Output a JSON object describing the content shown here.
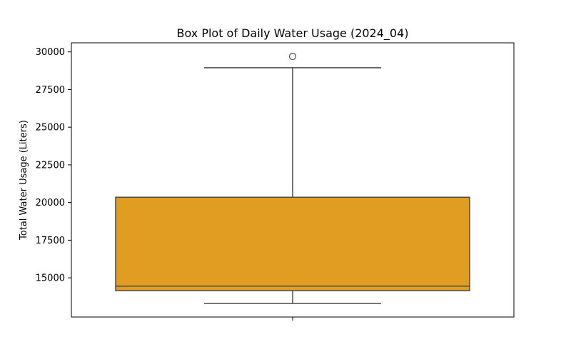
{
  "chart_data": {
    "type": "box",
    "title": "Box Plot of Daily Water Usage (2024_04)",
    "xlabel": "",
    "ylabel": "Total Water Usage (Liters)",
    "ylim": [
      12400,
      30600
    ],
    "yticks": [
      15000,
      17500,
      20000,
      22500,
      25000,
      27500,
      30000
    ],
    "ytick_labels": [
      "15000",
      "17500",
      "20000",
      "22500",
      "25000",
      "27500",
      "30000"
    ],
    "grid": false,
    "box": {
      "min": 13300,
      "q1": 14150,
      "median": 14450,
      "q3": 20350,
      "max": 28950,
      "outliers": [
        29700
      ]
    },
    "colors": {
      "box_fill": "#e09d21",
      "lines": "#4a4a4a"
    }
  }
}
